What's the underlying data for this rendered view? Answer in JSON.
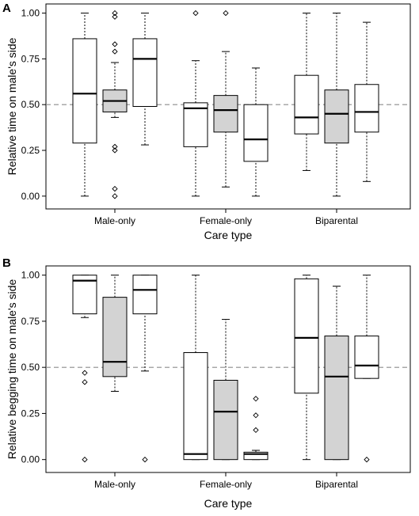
{
  "chart_data": [
    {
      "type": "box",
      "panel_label": "A",
      "xlabel": "Care type",
      "ylabel": "Relative time on male's side",
      "categories": [
        "Male-only",
        "Female-only",
        "Biparental"
      ],
      "yticks": [
        "0.00",
        "0.25",
        "0.50",
        "0.75",
        "1.00"
      ],
      "ylim": [
        -0.07,
        1.05
      ],
      "reference_line": 0.5,
      "boxes": [
        {
          "group": 0,
          "fill": "#ffffff",
          "min": 0.0,
          "q1": 0.29,
          "median": 0.56,
          "q3": 0.86,
          "max": 1.0,
          "outliers": []
        },
        {
          "group": 0,
          "fill": "#d3d3d3",
          "min": 0.43,
          "q1": 0.46,
          "median": 0.52,
          "q3": 0.58,
          "max": 0.73,
          "outliers": [
            1.0,
            0.98,
            0.83,
            0.79,
            0.27,
            0.25,
            0.04,
            0.0
          ]
        },
        {
          "group": 0,
          "fill": "#ffffff",
          "min": 0.28,
          "q1": 0.49,
          "median": 0.75,
          "q3": 0.86,
          "max": 1.0,
          "outliers": []
        },
        {
          "group": 1,
          "fill": "#ffffff",
          "min": 0.0,
          "q1": 0.27,
          "median": 0.48,
          "q3": 0.51,
          "max": 0.74,
          "outliers": [
            1.0
          ]
        },
        {
          "group": 1,
          "fill": "#d3d3d3",
          "min": 0.05,
          "q1": 0.35,
          "median": 0.47,
          "q3": 0.55,
          "max": 0.79,
          "outliers": [
            1.0
          ]
        },
        {
          "group": 1,
          "fill": "#ffffff",
          "min": 0.0,
          "q1": 0.19,
          "median": 0.31,
          "q3": 0.5,
          "max": 0.7,
          "outliers": []
        },
        {
          "group": 2,
          "fill": "#ffffff",
          "min": 0.14,
          "q1": 0.34,
          "median": 0.43,
          "q3": 0.66,
          "max": 1.0,
          "outliers": []
        },
        {
          "group": 2,
          "fill": "#d3d3d3",
          "min": 0.0,
          "q1": 0.29,
          "median": 0.45,
          "q3": 0.58,
          "max": 1.0,
          "outliers": []
        },
        {
          "group": 2,
          "fill": "#ffffff",
          "min": 0.08,
          "q1": 0.35,
          "median": 0.46,
          "q3": 0.61,
          "max": 0.95,
          "outliers": []
        }
      ]
    },
    {
      "type": "box",
      "panel_label": "B",
      "xlabel": "Care type",
      "ylabel": "Relative begging time on male's side",
      "categories": [
        "Male-only",
        "Female-only",
        "Biparental"
      ],
      "yticks": [
        "0.00",
        "0.25",
        "0.50",
        "0.75",
        "1.00"
      ],
      "ylim": [
        -0.07,
        1.05
      ],
      "reference_line": 0.5,
      "boxes": [
        {
          "group": 0,
          "fill": "#ffffff",
          "min": 0.77,
          "q1": 0.79,
          "median": 0.97,
          "q3": 1.0,
          "max": 1.0,
          "outliers": [
            0.47,
            0.42,
            0.0
          ]
        },
        {
          "group": 0,
          "fill": "#d3d3d3",
          "min": 0.37,
          "q1": 0.45,
          "median": 0.53,
          "q3": 0.88,
          "max": 1.0,
          "outliers": []
        },
        {
          "group": 0,
          "fill": "#ffffff",
          "min": 0.48,
          "q1": 0.79,
          "median": 0.92,
          "q3": 1.0,
          "max": 1.0,
          "outliers": [
            0.0
          ]
        },
        {
          "group": 1,
          "fill": "#ffffff",
          "min": 0.0,
          "q1": 0.0,
          "median": 0.03,
          "q3": 0.58,
          "max": 1.0,
          "outliers": []
        },
        {
          "group": 1,
          "fill": "#d3d3d3",
          "min": 0.0,
          "q1": 0.0,
          "median": 0.26,
          "q3": 0.43,
          "max": 0.76,
          "outliers": []
        },
        {
          "group": 1,
          "fill": "#ffffff",
          "min": 0.0,
          "q1": 0.0,
          "median": 0.03,
          "q3": 0.04,
          "max": 0.05,
          "outliers": [
            0.33,
            0.24,
            0.16
          ]
        },
        {
          "group": 2,
          "fill": "#ffffff",
          "min": 0.0,
          "q1": 0.36,
          "median": 0.66,
          "q3": 0.98,
          "max": 1.0,
          "outliers": []
        },
        {
          "group": 2,
          "fill": "#d3d3d3",
          "min": 0.0,
          "q1": 0.0,
          "median": 0.45,
          "q3": 0.67,
          "max": 0.94,
          "outliers": []
        },
        {
          "group": 2,
          "fill": "#ffffff",
          "min": 0.44,
          "q1": 0.44,
          "median": 0.51,
          "q3": 0.67,
          "max": 1.0,
          "outliers": [
            0.0
          ]
        }
      ]
    }
  ]
}
